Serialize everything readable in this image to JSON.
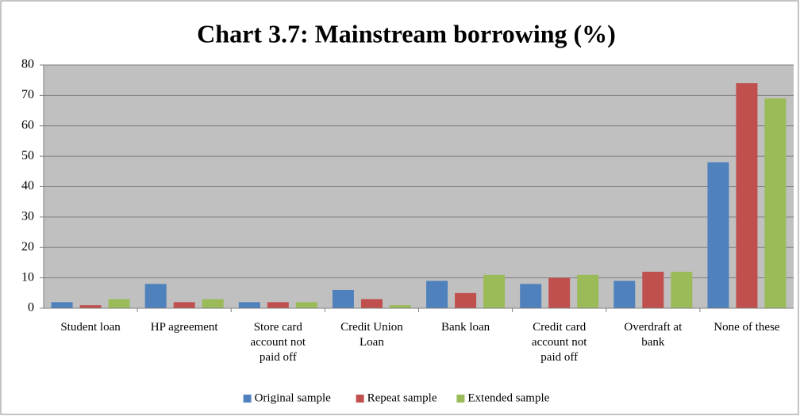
{
  "chart_data": {
    "type": "bar",
    "title": "Chart 3.7: Mainstream borrowing (%)",
    "categories": [
      "Student loan",
      "HP agreement",
      "Store card account not paid off",
      "Credit Union Loan",
      "Bank loan",
      "Credit card account not paid off",
      "Overdraft at bank",
      "None of these"
    ],
    "series": [
      {
        "name": "Original sample",
        "color": "#4f81bd",
        "values": [
          2,
          8,
          2,
          6,
          9,
          8,
          9,
          48
        ]
      },
      {
        "name": "Repeat sample",
        "color": "#c0504d",
        "values": [
          1,
          2,
          2,
          3,
          5,
          10,
          12,
          74
        ]
      },
      {
        "name": "Extended sample",
        "color": "#9bbb59",
        "values": [
          3,
          3,
          2,
          1,
          11,
          11,
          12,
          69
        ]
      }
    ],
    "ylim": [
      0,
      80
    ],
    "yticks": [
      0,
      10,
      20,
      30,
      40,
      50,
      60,
      70,
      80
    ],
    "grid": true,
    "legend": "bottom"
  }
}
